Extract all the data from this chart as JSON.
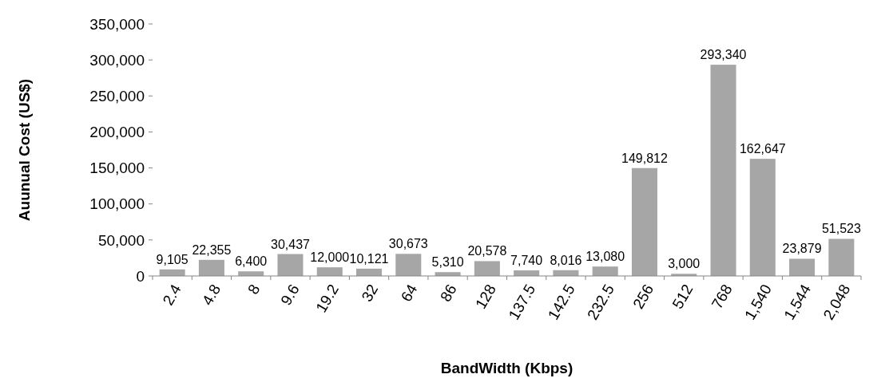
{
  "chart_data": {
    "type": "bar",
    "xlabel": "BandWidth (Kbps)",
    "ylabel": "Auunual Cost (US$)",
    "categories": [
      "2.4",
      "4.8",
      "8",
      "9.6",
      "19.2",
      "32",
      "64",
      "86",
      "128",
      "137.5",
      "142.5",
      "232.5",
      "256",
      "512",
      "768",
      "1,540",
      "1,544",
      "2,048"
    ],
    "values": [
      9105,
      22355,
      6400,
      30437,
      12000,
      10121,
      30673,
      5310,
      20578,
      7740,
      8016,
      13080,
      149812,
      3000,
      293340,
      162647,
      23879,
      51523
    ],
    "value_labels": [
      "9,105",
      "22,355",
      "6,400",
      "30,437",
      "12,000",
      "10,121",
      "30,673",
      "5,310",
      "20,578",
      "7,740",
      "8,016",
      "13,080",
      "149,812",
      "3,000",
      "293,340",
      "162,647",
      "23,879",
      "51,523"
    ],
    "color": "#a6a6a6",
    "ylim": [
      0,
      350000
    ],
    "yticks": [
      {
        "value": 0,
        "label": "0"
      },
      {
        "value": 50000,
        "label": "50,000"
      },
      {
        "value": 100000,
        "label": "100,000"
      },
      {
        "value": 150000,
        "label": "150,000"
      },
      {
        "value": 200000,
        "label": "200,000"
      },
      {
        "value": 250000,
        "label": "250,000"
      },
      {
        "value": 300000,
        "label": "300,000"
      },
      {
        "value": 350000,
        "label": "350,000"
      }
    ],
    "grid": false
  }
}
